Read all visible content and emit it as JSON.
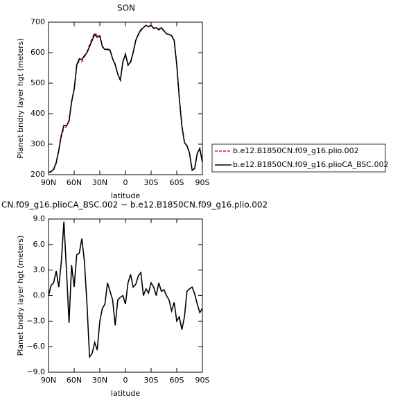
{
  "chart_data": [
    {
      "type": "line",
      "title": "SON",
      "x_label": "latitude",
      "y_label": "Planet bndry layer hgt (meters)",
      "x": [
        90,
        87,
        84,
        81,
        78,
        75,
        72,
        69,
        66,
        63,
        60,
        57,
        54,
        51,
        48,
        45,
        42,
        39,
        36,
        33,
        30,
        27,
        24,
        21,
        18,
        15,
        12,
        9,
        6,
        3,
        0,
        -3,
        -6,
        -9,
        -12,
        -15,
        -18,
        -21,
        -24,
        -27,
        -30,
        -33,
        -36,
        -39,
        -42,
        -45,
        -48,
        -51,
        -54,
        -57,
        -60,
        -63,
        -66,
        -69,
        -72,
        -75,
        -78,
        -81,
        -84,
        -87,
        -90
      ],
      "series": [
        {
          "name": "b.e12.B1850CN.f09_g16.plio.002",
          "color": "#e0201b",
          "dashed": true,
          "values": [
            208,
            209,
            216,
            237,
            279,
            326,
            353,
            357,
            378,
            436,
            479,
            555,
            575,
            571,
            586,
            601,
            627,
            647,
            665,
            656,
            658,
            621,
            611,
            610,
            607,
            580,
            563,
            530,
            510,
            570,
            596,
            558,
            567,
            599,
            639,
            658,
            672,
            682,
            689,
            685,
            688,
            679,
            682,
            674,
            681,
            671,
            662,
            660,
            657,
            641,
            563,
            452,
            364,
            307,
            294,
            269,
            214,
            220,
            271,
            287,
            241
          ]
        },
        {
          "name": "b.e12.B1850CN.f09_g16.plioCA_BSC.002",
          "color": "#000000",
          "dashed": false,
          "values": [
            208,
            210,
            218,
            240,
            280,
            330,
            362,
            360,
            375,
            440,
            480,
            560,
            580,
            578,
            590,
            600,
            620,
            640,
            660,
            650,
            655,
            620,
            610,
            612,
            608,
            580,
            560,
            530,
            510,
            570,
            595,
            560,
            570,
            600,
            640,
            660,
            675,
            682,
            690,
            685,
            690,
            680,
            682,
            676,
            682,
            672,
            662,
            660,
            655,
            640,
            560,
            450,
            360,
            305,
            295,
            270,
            215,
            220,
            270,
            285,
            240
          ]
        }
      ],
      "xlim": [
        90,
        -90
      ],
      "xticks": [
        {
          "value": 90,
          "label": "90N"
        },
        {
          "value": 60,
          "label": "60N"
        },
        {
          "value": 30,
          "label": "30N"
        },
        0,
        {
          "value": -30,
          "label": "30S"
        },
        {
          "value": -60,
          "label": "60S"
        },
        {
          "value": -90,
          "label": "90S"
        }
      ],
      "ylim": [
        200,
        700
      ],
      "yticks": [
        200,
        300,
        400,
        500,
        600,
        700
      ],
      "legend_position": "right"
    },
    {
      "type": "line",
      "title": "CN.f09_g16.plioCA_BSC.002 − b.e12.B1850CN.f09_g16.plio.002",
      "x_label": "latitude",
      "y_label": "Planet bndry layer hgt (meters)",
      "x": [
        90,
        87,
        84,
        81,
        78,
        75,
        72,
        69,
        66,
        63,
        60,
        57,
        54,
        51,
        48,
        45,
        42,
        39,
        36,
        33,
        30,
        27,
        24,
        21,
        18,
        15,
        12,
        9,
        6,
        3,
        0,
        -3,
        -6,
        -9,
        -12,
        -15,
        -18,
        -21,
        -24,
        -27,
        -30,
        -33,
        -36,
        -39,
        -42,
        -45,
        -48,
        -51,
        -54,
        -57,
        -60,
        -63,
        -66,
        -69,
        -72,
        -75,
        -78,
        -81,
        -84,
        -87,
        -90
      ],
      "series": [
        {
          "color": "#000000",
          "dashed": false,
          "values": [
            0,
            1.2,
            1.5,
            2.9,
            1.0,
            4.0,
            8.7,
            3.0,
            -3.2,
            3.6,
            1.0,
            4.8,
            5.0,
            6.7,
            4.0,
            -1.0,
            -7.2,
            -6.8,
            -5.5,
            -6.4,
            -3.0,
            -1.5,
            -1.0,
            1.5,
            0.5,
            -0.5,
            -3.5,
            -0.5,
            -0.2,
            0.0,
            -1.0,
            1.5,
            2.5,
            1.0,
            1.3,
            2.3,
            2.7,
            0.0,
            0.8,
            0.3,
            1.5,
            1.0,
            0.0,
            1.5,
            0.5,
            0.7,
            0.0,
            -0.5,
            -1.8,
            -0.8,
            -3.0,
            -2.5,
            -4.0,
            -2.5,
            0.5,
            0.8,
            1.0,
            0.2,
            -1.0,
            -2.0,
            -1.5
          ]
        }
      ],
      "xlim": [
        90,
        -90
      ],
      "xticks": [
        {
          "value": 90,
          "label": "90N"
        },
        {
          "value": 60,
          "label": "60N"
        },
        {
          "value": 30,
          "label": "30N"
        },
        0,
        {
          "value": -30,
          "label": "30S"
        },
        {
          "value": -60,
          "label": "60S"
        },
        {
          "value": -90,
          "label": "90S"
        }
      ],
      "ylim": [
        -9,
        9
      ],
      "yticks": [
        {
          "value": -9,
          "label": "−9.0"
        },
        {
          "value": -6,
          "label": "−6.0"
        },
        {
          "value": -3,
          "label": "−3.0"
        },
        {
          "value": 0,
          "label": "0.0"
        },
        {
          "value": 3,
          "label": "3.0"
        },
        {
          "value": 6,
          "label": "6.0"
        },
        {
          "value": 9,
          "label": "9.0"
        }
      ]
    }
  ]
}
